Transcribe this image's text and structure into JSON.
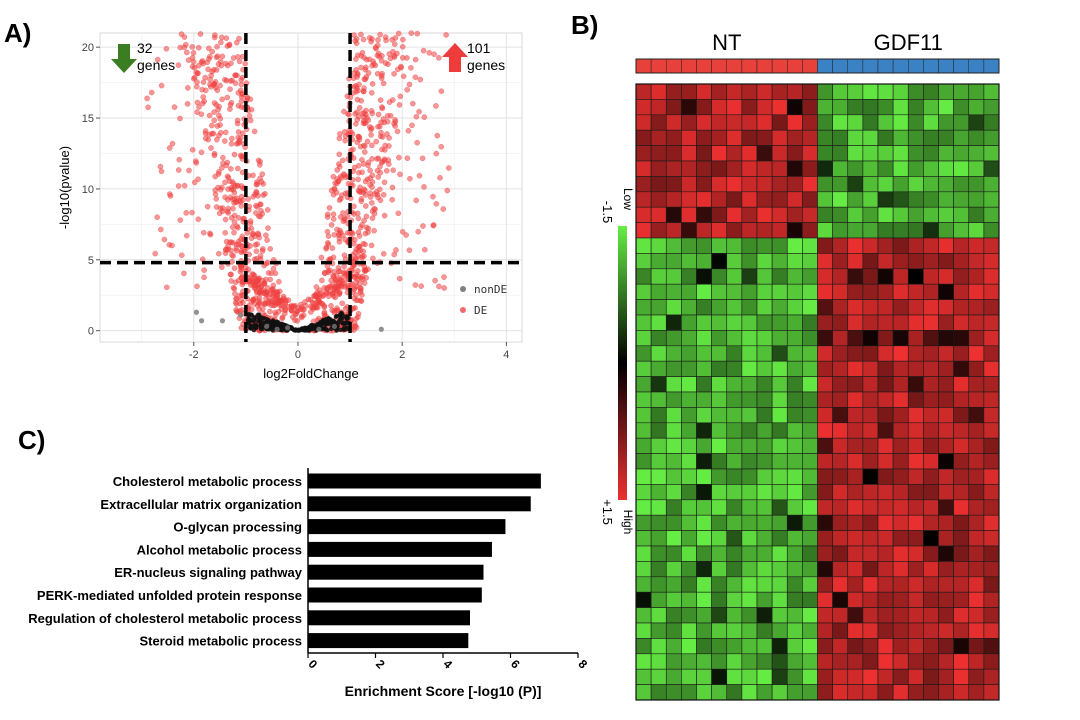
{
  "panels": {
    "a": "A)",
    "b": "B)",
    "c": "C)"
  },
  "chart_data": [
    {
      "type": "scatter",
      "panel": "A",
      "xlabel": "log2FoldChange",
      "ylabel": "-log10(pvalue)",
      "xlim": [
        -3.8,
        4.3
      ],
      "ylim": [
        -0.8,
        21
      ],
      "x_ticks": [
        "-2",
        "0",
        "2",
        "4"
      ],
      "x_tick_values": [
        -2,
        0,
        2,
        4
      ],
      "y_ticks": [
        "0",
        "5",
        "10",
        "15",
        "20"
      ],
      "y_tick_values": [
        0,
        5,
        10,
        15,
        20
      ],
      "grid": true,
      "thresholds": {
        "fold_change": [
          -1,
          1
        ],
        "neg_log10_p": 4.8
      },
      "down": {
        "count": "32",
        "label": "genes",
        "arrow_color": "#3a7d22"
      },
      "up": {
        "count": "101",
        "label": "genes",
        "arrow_color": "#ee3b3b"
      },
      "legend": {
        "position": "bottom-right",
        "entries": [
          {
            "name": "nonDE",
            "color": "#808080"
          },
          {
            "name": "DE",
            "color": "#f26b6b"
          }
        ]
      },
      "nonDE_points": [
        [
          -1.95,
          1.3
        ],
        [
          -1.85,
          0.7
        ],
        [
          -1.45,
          0.7
        ],
        [
          -1.1,
          1.1
        ],
        [
          -1.0,
          0.3
        ],
        [
          -0.2,
          0.2
        ],
        [
          -0.4,
          0.1
        ],
        [
          -0.6,
          0.3
        ],
        [
          0.4,
          0.1
        ],
        [
          0.7,
          0.3
        ],
        [
          1.6,
          0.1
        ]
      ],
      "colors": {
        "de": "#ef4040",
        "nonde": "#777777"
      }
    },
    {
      "type": "heatmap",
      "panel": "B",
      "groups": [
        {
          "name": "NT",
          "columns": 12,
          "color": "#e8403a"
        },
        {
          "name": "GDF11",
          "columns": 12,
          "color": "#3a82c4"
        }
      ],
      "rows": 40,
      "colorbar": {
        "low_label": "Low",
        "high_label": "High",
        "min": "-1.5",
        "max": "+1.5",
        "low_color": "#66ee44",
        "mid_color": "#000000",
        "high_color": "#ee3030"
      },
      "row_blocks": [
        {
          "rows": 10,
          "nt": "high",
          "gdf11": "low"
        },
        {
          "rows": 30,
          "nt": "low",
          "gdf11": "high"
        }
      ]
    },
    {
      "type": "bar",
      "panel": "C",
      "orientation": "horizontal",
      "categories": [
        "Cholesterol metabolic process",
        "Extracellular matrix organization",
        "O-glycan processing",
        "Alcohol metabolic process",
        "ER-nucleus signaling pathway",
        "PERK-mediated unfolded protein response",
        "Regulation of cholesterol metabolic process",
        "Steroid metabolic process"
      ],
      "values": [
        6.9,
        6.6,
        5.85,
        5.45,
        5.2,
        5.15,
        4.8,
        4.75
      ],
      "xlabel": "Enrichment Score [-log10 (P)]",
      "xlim": [
        0,
        8
      ],
      "x_ticks": [
        "0",
        "2",
        "4",
        "6",
        "8"
      ],
      "x_tick_values": [
        0,
        2,
        4,
        6,
        8
      ],
      "bar_color": "#000000"
    }
  ]
}
